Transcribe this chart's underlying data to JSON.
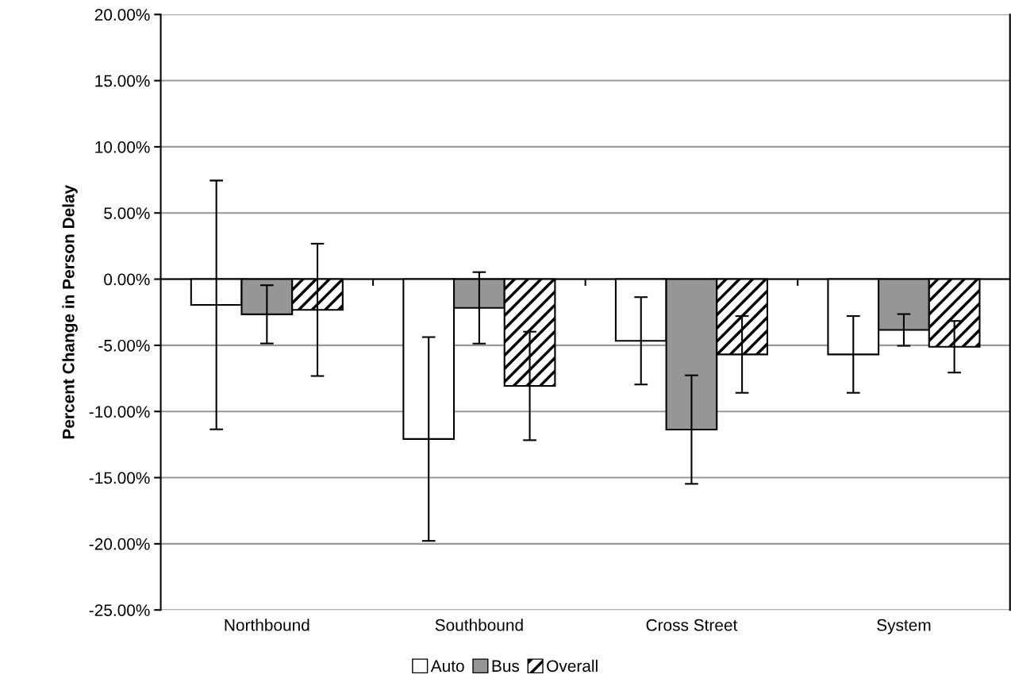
{
  "chart_data": {
    "type": "bar",
    "ylabel": "Percent Change in Person Delay",
    "categories": [
      "Northbound",
      "Southbound",
      "Cross Street",
      "System"
    ],
    "series": [
      {
        "name": "Auto",
        "color": "#ffffff",
        "values": [
          -1.95,
          -12.08,
          -4.66,
          -5.69
        ],
        "errors": [
          9.4,
          7.7,
          3.3,
          2.9
        ]
      },
      {
        "name": "Bus",
        "color": "#969696",
        "values": [
          -2.66,
          -2.17,
          -11.37,
          -3.84
        ],
        "errors": [
          2.2,
          2.7,
          4.1,
          1.2
        ]
      },
      {
        "name": "Overall",
        "color": "#000000",
        "values": [
          -2.32,
          -8.07,
          -5.69,
          -5.11
        ],
        "errors": [
          5.0,
          4.1,
          2.9,
          1.95
        ]
      }
    ],
    "ylim": [
      -25,
      20
    ],
    "yticks": [
      {
        "value": -25,
        "label": "-25.00%"
      },
      {
        "value": -20,
        "label": "-20.00%"
      },
      {
        "value": -15,
        "label": "-15.00%"
      },
      {
        "value": -10,
        "label": "-10.00%"
      },
      {
        "value": -5,
        "label": "-5.00%"
      },
      {
        "value": 0,
        "label": "0.00%"
      },
      {
        "value": 5,
        "label": "5.00%"
      },
      {
        "value": 10,
        "label": "10.00%"
      },
      {
        "value": 15,
        "label": "15.00%"
      },
      {
        "value": 20,
        "label": "20.00%"
      }
    ],
    "grid": "y",
    "legend": "bottom"
  }
}
